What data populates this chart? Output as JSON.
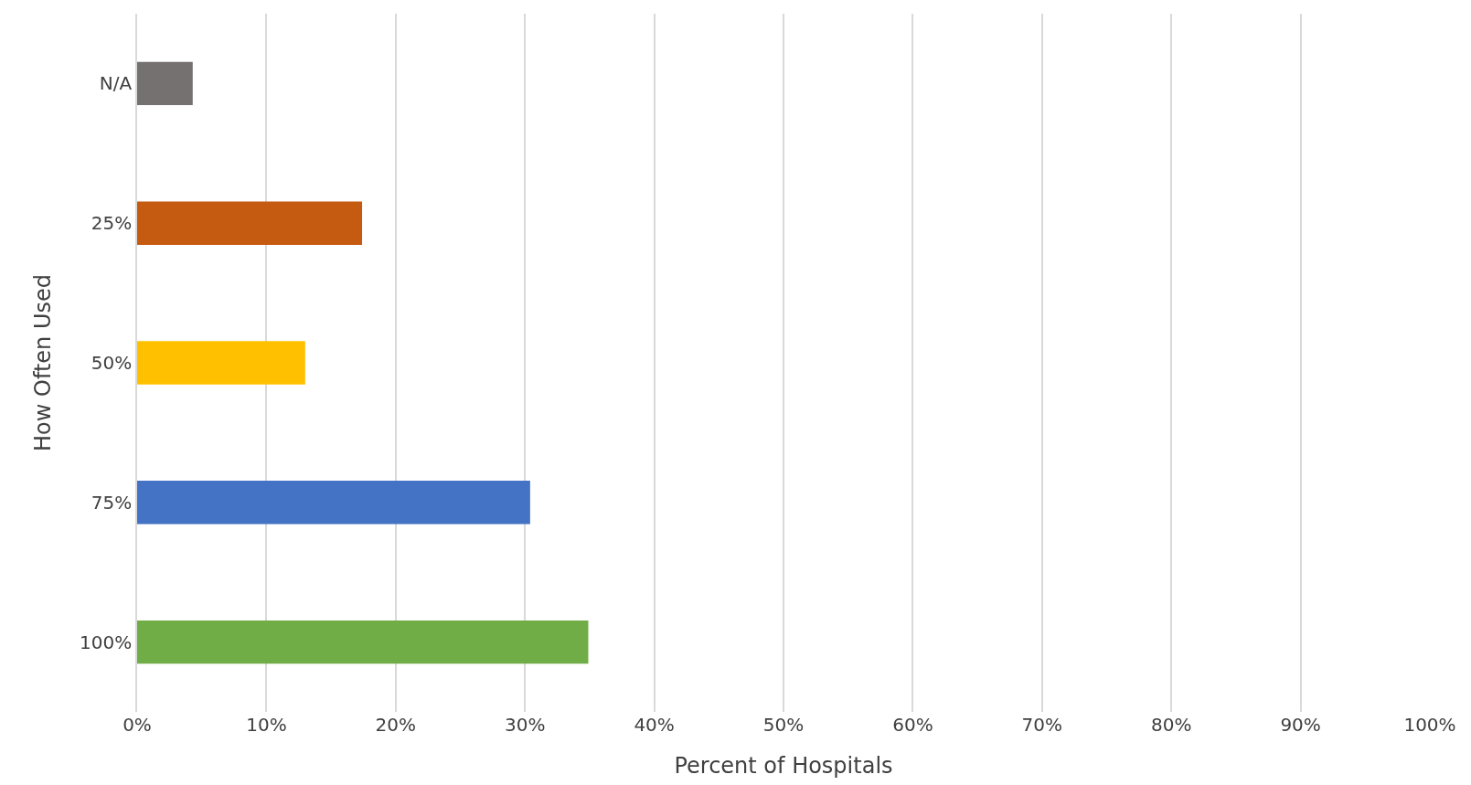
{
  "chart_data": {
    "type": "bar",
    "orientation": "horizontal",
    "xlabel": "Percent of Hospitals",
    "ylabel": "How Often Used",
    "categories": [
      "N/A",
      "25%",
      "50%",
      "75%",
      "100%"
    ],
    "values": [
      4.3,
      17.4,
      13.0,
      30.4,
      34.9
    ],
    "colors": [
      "#767171",
      "#c55a11",
      "#ffc000",
      "#4472c4",
      "#70ad47"
    ],
    "xlim": [
      0,
      100
    ],
    "xticks": [
      {
        "value": 0,
        "label": "0%"
      },
      {
        "value": 10,
        "label": "10%"
      },
      {
        "value": 20,
        "label": "20%"
      },
      {
        "value": 30,
        "label": "30%"
      },
      {
        "value": 40,
        "label": "40%"
      },
      {
        "value": 50,
        "label": "50%"
      },
      {
        "value": 60,
        "label": "60%"
      },
      {
        "value": 70,
        "label": "70%"
      },
      {
        "value": 80,
        "label": "80%"
      },
      {
        "value": 90,
        "label": "90%"
      },
      {
        "value": 100,
        "label": "100%"
      }
    ],
    "grid": "x"
  }
}
